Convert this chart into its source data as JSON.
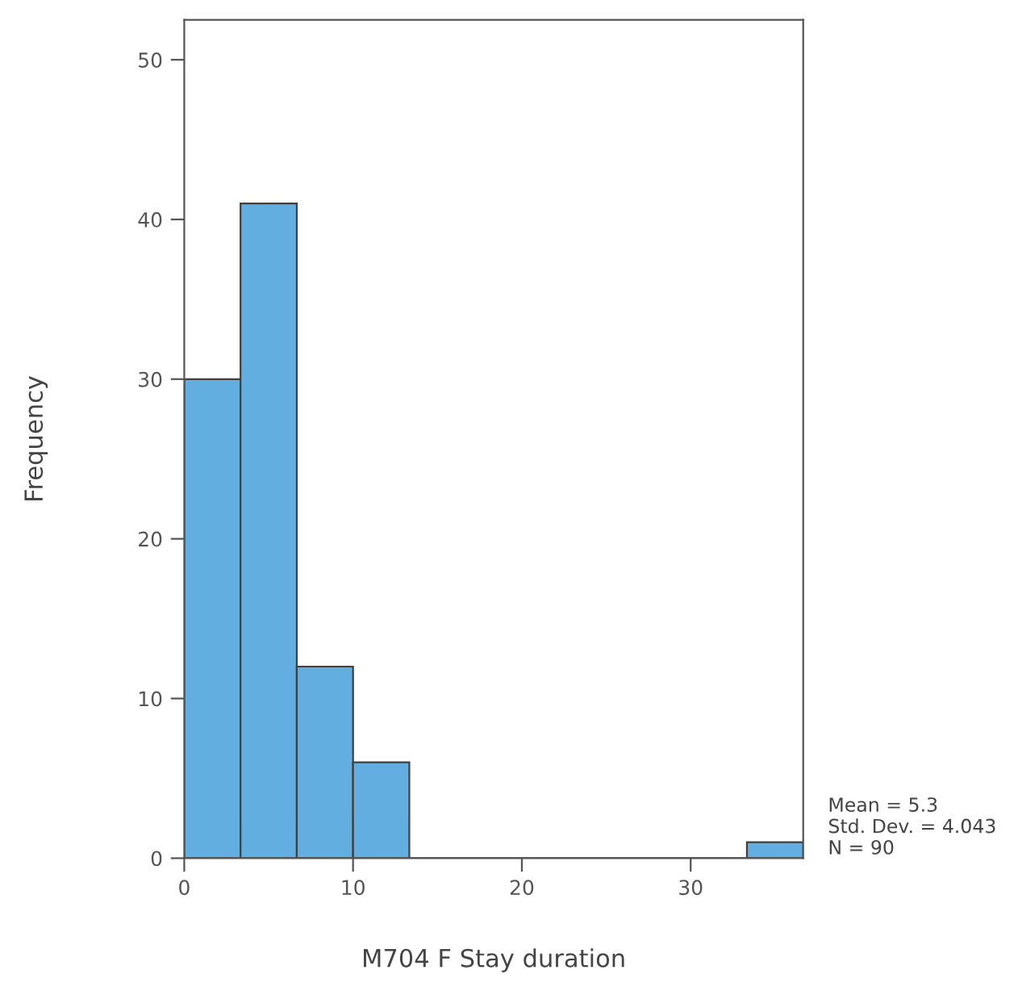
{
  "chart_data": {
    "type": "histogram",
    "xlabel": "M704 F Stay duration",
    "ylabel": "Frequency",
    "bins": [
      0,
      3.333,
      6.667,
      10,
      13.333,
      16.667,
      20,
      23.333,
      26.667,
      30,
      33.333,
      36.667
    ],
    "values": [
      30,
      41,
      12,
      6,
      0,
      0,
      0,
      0,
      0,
      0,
      1
    ],
    "color": "#62aee0",
    "xlim": [
      0,
      36.667
    ],
    "xticks": [
      0,
      10,
      20,
      30
    ],
    "ylim": [
      0,
      52.5
    ],
    "yticks": [
      0,
      10,
      20,
      30,
      40,
      50
    ],
    "grid": false,
    "legend": false,
    "annotations": [
      "Mean = 5.3\nStd. Dev. = 4.043\nN = 90"
    ]
  }
}
